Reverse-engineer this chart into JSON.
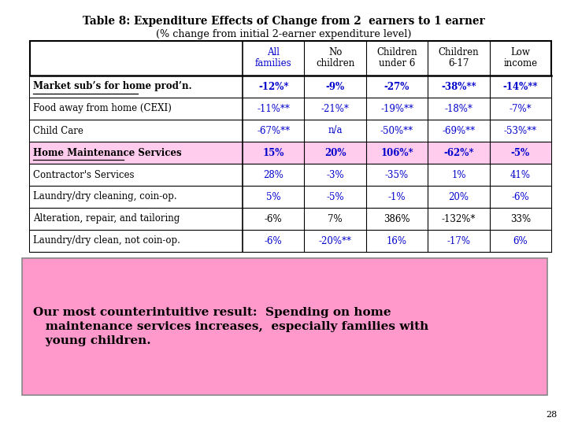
{
  "title_line1": "Table 8: Expenditure Effects of Change from 2  earners to 1 earner",
  "title_line2": "(% change from initial 2-earner expenditure level)",
  "headers": [
    "All\nfamilies",
    "No\nchildren",
    "Children\nunder 6",
    "Children\n6-17",
    "Low\nincome"
  ],
  "col_header_color": [
    "#0000cc",
    "#000000",
    "#000000",
    "#000000",
    "#000000"
  ],
  "rows": [
    {
      "label": "Market sub’s for home prod’n.",
      "values": [
        "-12%*",
        "-9%",
        "-27%",
        "-38%**",
        "-14%**"
      ],
      "label_bold": true,
      "label_underline": true,
      "label_italic": false,
      "value_color": "#0000cc",
      "row_bg": "#ffffff"
    },
    {
      "label": "Food away from home (CEXI)",
      "values": [
        "-11%**",
        "-21%*",
        "-19%**",
        "-18%*",
        "-7%*"
      ],
      "label_bold": false,
      "label_underline": false,
      "label_italic": false,
      "value_color": "#0000cc",
      "row_bg": "#ffffff"
    },
    {
      "label": "Child Care",
      "values": [
        "-67%**",
        "n/a",
        "-50%**",
        "-69%**",
        "-53%**"
      ],
      "label_bold": false,
      "label_underline": false,
      "label_italic": false,
      "value_color": "#0000cc",
      "row_bg": "#ffffff"
    },
    {
      "label": "Home Maintenance Services",
      "values": [
        "15%",
        "20%",
        "106%*",
        "-62%*",
        "-5%"
      ],
      "label_bold": true,
      "label_underline": true,
      "label_italic": false,
      "value_color": "#0000cc",
      "row_bg": "#ffccee"
    },
    {
      "label": "Contractor's Services",
      "values": [
        "28%",
        "-3%",
        "-35%",
        "1%",
        "41%"
      ],
      "label_bold": false,
      "label_underline": false,
      "label_italic": false,
      "value_color": "#0000cc",
      "row_bg": "#ffffff"
    },
    {
      "label": "Laundry/dry cleaning, coin-op.",
      "values": [
        "5%",
        "-5%",
        "-1%",
        "20%",
        "-6%"
      ],
      "label_bold": false,
      "label_underline": false,
      "label_italic": false,
      "value_color": "#0000cc",
      "row_bg": "#ffffff"
    },
    {
      "label": "Alteration, repair, and tailoring",
      "values": [
        "-6%",
        "7%",
        "386%",
        "-132%*",
        "33%"
      ],
      "label_bold": false,
      "label_underline": false,
      "label_italic": false,
      "value_color": "#000000",
      "row_bg": "#ffffff"
    },
    {
      "label": "Laundry/dry clean, not coin-op.",
      "values": [
        "-6%",
        "-20%**",
        "16%",
        "-17%",
        "6%"
      ],
      "label_bold": false,
      "label_underline": false,
      "label_italic": false,
      "value_color": "#0000cc",
      "row_bg": "#ffffff"
    }
  ],
  "note_text_line1": "Our most counterintuitive result:  Spending on home",
  "note_text_line2": "   maintenance services increases,  especially families with",
  "note_text_line3": "   young children.",
  "note_bg_color": "#ff99cc",
  "note_border_color": "#888888",
  "page_number": "28",
  "background_color": "#ffffff"
}
